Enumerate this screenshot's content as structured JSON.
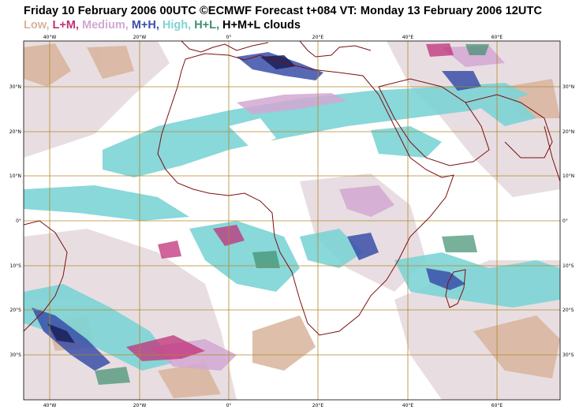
{
  "header": {
    "title": "Friday 10 February 2006 00UTC ©ECMWF Forecast t+084 VT: Monday 13 February 2006 12UTC"
  },
  "legend": {
    "items": [
      {
        "label": "Low,",
        "color": "#d8b49c"
      },
      {
        "label": "L+M,",
        "color": "#c0307a"
      },
      {
        "label": "Medium,",
        "color": "#d2a8d2"
      },
      {
        "label": "M+H,",
        "color": "#3a4fa8"
      },
      {
        "label": "High,",
        "color": "#7dd4d6"
      },
      {
        "label": "H+L,",
        "color": "#3e8e6e"
      },
      {
        "label": "H+M+L clouds",
        "color": "#000000"
      }
    ]
  },
  "map": {
    "extent": {
      "lon_min": -50,
      "lon_max": 70,
      "lat_min": -40,
      "lat_max": 40
    },
    "grid_color": "#b08a2a",
    "coast_color": "#7a1010",
    "longitude_labels": [
      "40°W",
      "20°W",
      "0°",
      "20°E",
      "40°E",
      "60°E"
    ],
    "latitude_labels": [
      "30°N",
      "20°N",
      "10°N",
      "0°",
      "10°S",
      "20°S",
      "30°S"
    ]
  }
}
